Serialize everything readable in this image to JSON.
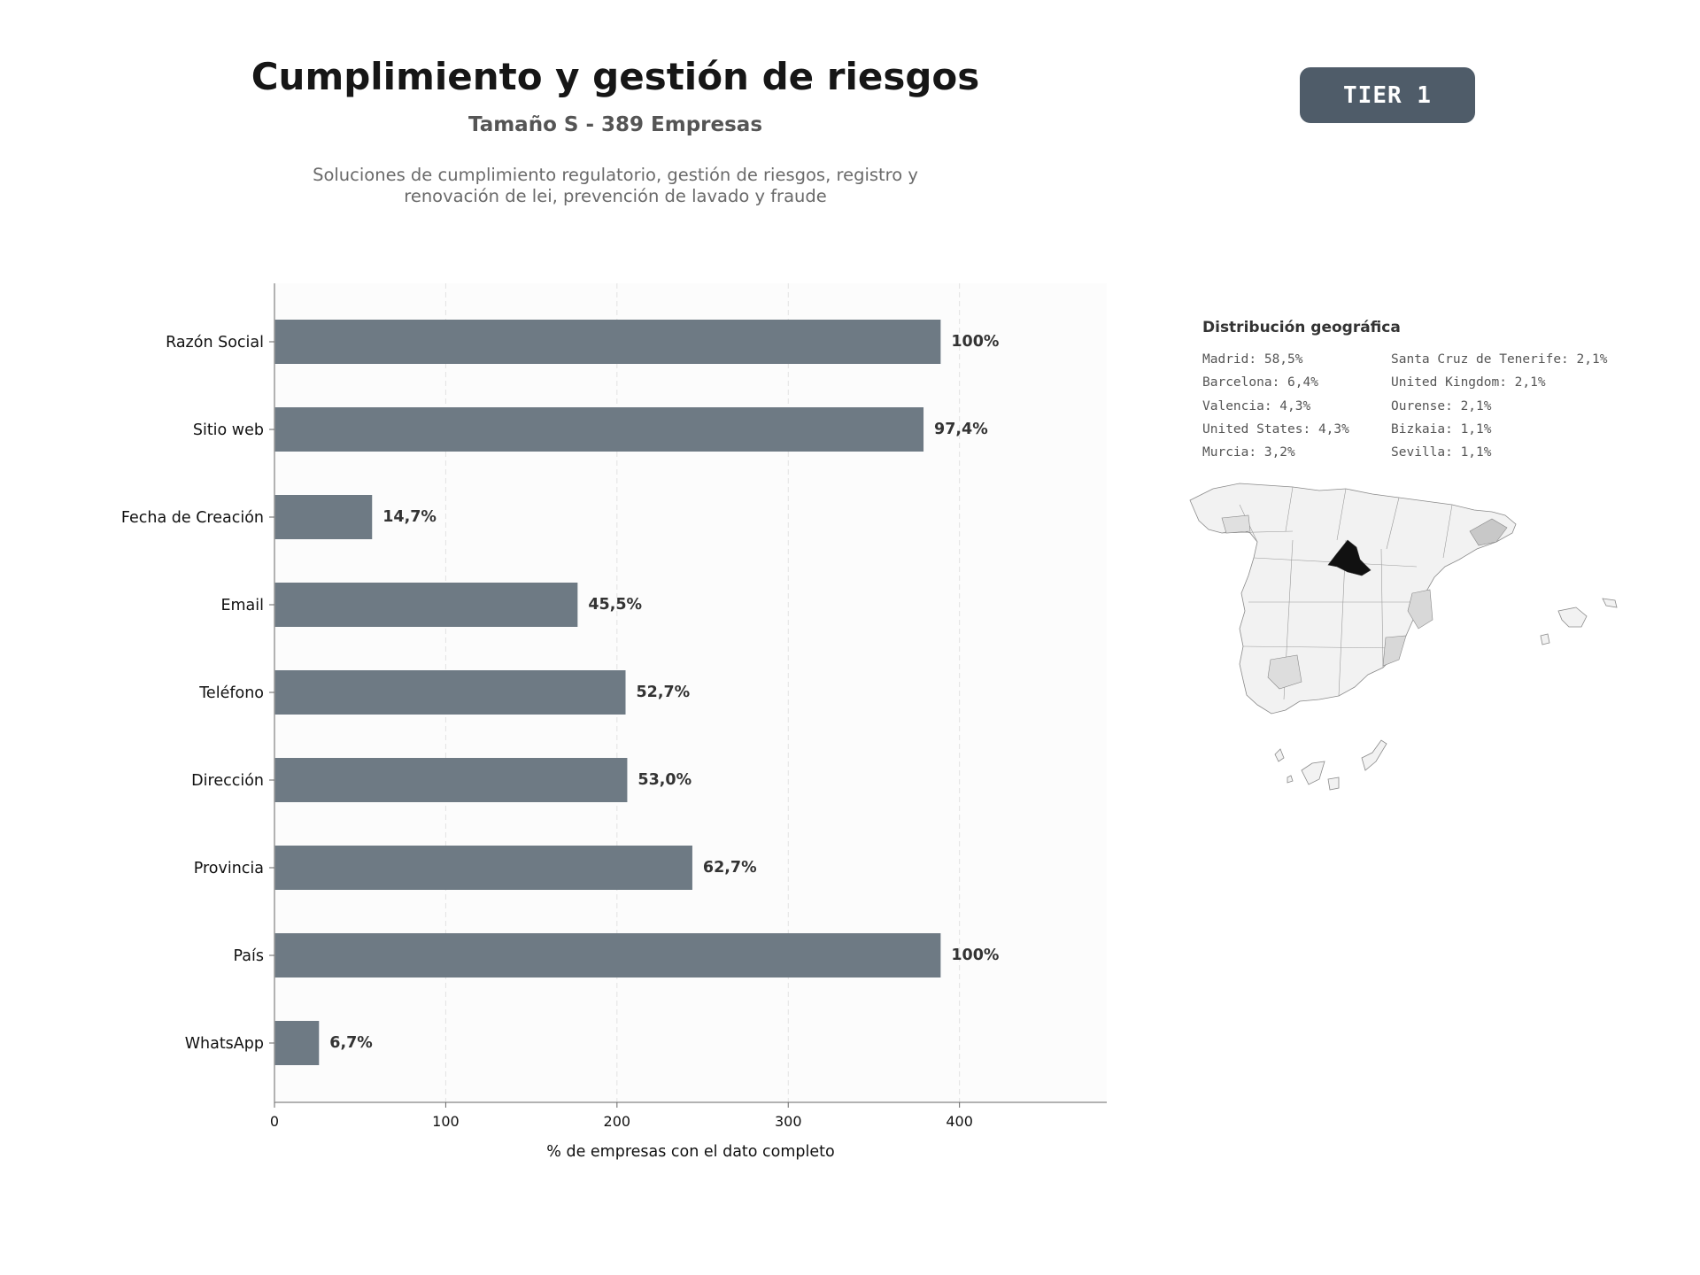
{
  "header": {
    "title": "Cumplimiento y gestión de riesgos",
    "subtitle": "Tamaño S - 389 Empresas",
    "description": "Soluciones de cumplimiento regulatorio, gestión de riesgos, registro y renovación de lei, prevención de lavado y fraude",
    "tier_badge": "TIER 1"
  },
  "chart_data": {
    "type": "bar",
    "orientation": "horizontal",
    "categories": [
      "Razón Social",
      "Sitio web",
      "Fecha de Creación",
      "Email",
      "Teléfono",
      "Dirección",
      "Provincia",
      "País",
      "WhatsApp"
    ],
    "values": [
      389,
      379,
      57,
      177,
      205,
      206,
      244,
      389,
      26
    ],
    "value_labels": [
      "100%",
      "97,4%",
      "14,7%",
      "45,5%",
      "52,7%",
      "53,0%",
      "62,7%",
      "100%",
      "6,7%"
    ],
    "xlabel": "% de empresas con el dato completo",
    "xlim": [
      0,
      486
    ],
    "xticks": [
      0,
      100,
      200,
      300,
      400
    ],
    "grid": "vertical-dashed",
    "bar_color": "#6e7a84"
  },
  "geo": {
    "title": "Distribución geográfica",
    "items": [
      "Madrid: 58,5%",
      "Barcelona: 6,4%",
      "Valencia: 4,3%",
      "United States: 4,3%",
      "Murcia: 3,2%",
      "Santa Cruz de Tenerife: 2,1%",
      "United Kingdom: 2,1%",
      "Ourense: 2,1%",
      "Bizkaia: 1,1%",
      "Sevilla: 1,1%"
    ]
  }
}
